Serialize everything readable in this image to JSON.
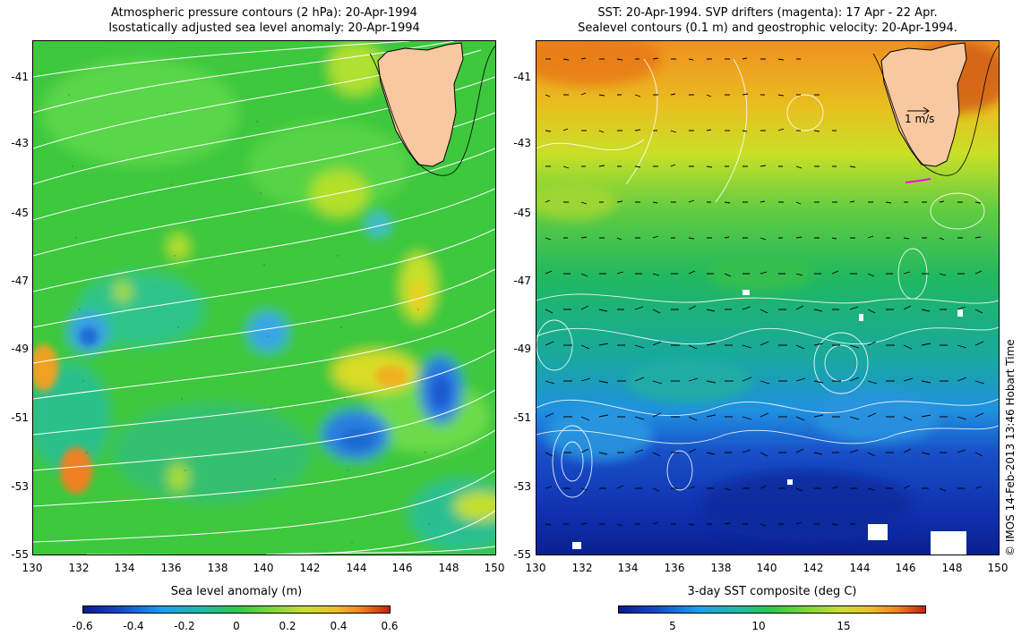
{
  "left_panel": {
    "title_line1": "Atmospheric pressure contours (2 hPa): 20-Apr-1994",
    "title_line2": "Isostatically adjusted sea level anomaly: 20-Apr-1994",
    "colorbar_title": "Sea level anomaly (m)",
    "colorbar_ticks": [
      "-0.6",
      "-0.4",
      "-0.2",
      "0",
      "0.2",
      "0.4",
      "0.6"
    ],
    "colorbar_values": [
      -0.6,
      -0.4,
      -0.2,
      0,
      0.2,
      0.4,
      0.6
    ],
    "colorbar_range": [
      -0.6,
      0.6
    ]
  },
  "right_panel": {
    "title_line1": "SST: 20-Apr-1994. SVP drifters (magenta): 17 Apr - 22 Apr.",
    "title_line2": "Sealevel contours (0.1 m) and geostrophic velocity: 20-Apr-1994.",
    "colorbar_title": "3-day SST composite (deg C)",
    "colorbar_ticks": [
      "5",
      "10",
      "15"
    ],
    "colorbar_values": [
      5,
      10,
      15
    ],
    "colorbar_range": [
      1.5,
      19.5
    ],
    "velocity_scale_label": "1 m/s"
  },
  "axes": {
    "lat_ticks": [
      "-41",
      "-43",
      "-45",
      "-47",
      "-49",
      "-51",
      "-53",
      "-55"
    ],
    "lon_ticks": [
      "130",
      "132",
      "134",
      "136",
      "138",
      "140",
      "142",
      "144",
      "146",
      "148",
      "150"
    ],
    "lon_range": [
      130,
      150
    ],
    "lat_range": [
      -55,
      -40.2
    ]
  },
  "credit": "© IMOS 14-Feb-2013 13:46 Hobart Time",
  "colors": {
    "land": "#f8c8a0",
    "anomaly_background": "#3cc83c",
    "contour": "#ffffff"
  }
}
